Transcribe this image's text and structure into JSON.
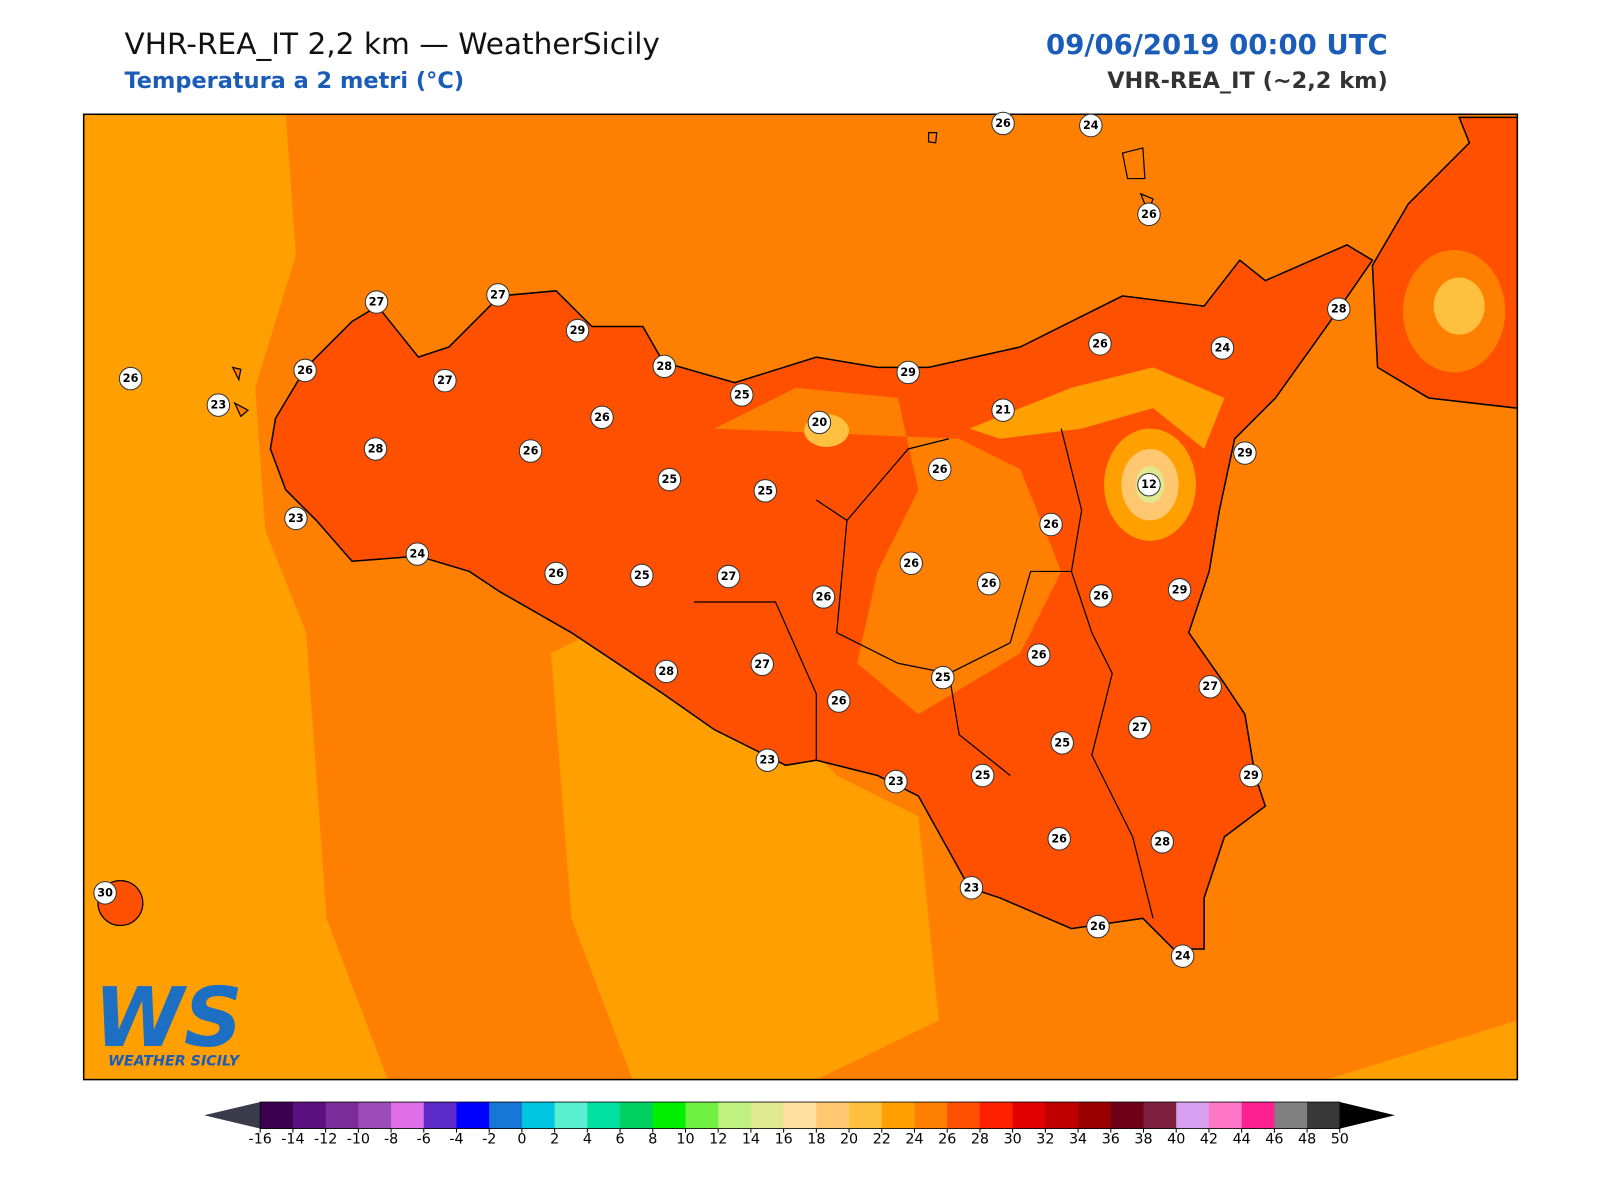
{
  "header": {
    "title": "VHR-REA_IT 2,2 km — WeatherSicily",
    "subtitle": "Temperatura a 2 metri (°C)",
    "datetime": "09/06/2019 00:00 UTC",
    "model": "VHR-REA_IT (~2,2 km)"
  },
  "map": {
    "stations": [
      26,
      24,
      26,
      27,
      27,
      29,
      26,
      23,
      26,
      27,
      28,
      25,
      29,
      26,
      24,
      28,
      26,
      20,
      21,
      28,
      26,
      25,
      25,
      26,
      29,
      12,
      23,
      24,
      26,
      26,
      25,
      27,
      26,
      26,
      26,
      26,
      29,
      26,
      28,
      27,
      25,
      27,
      26,
      27,
      25,
      23,
      25,
      23,
      29,
      26,
      28,
      23,
      26,
      24,
      30
    ]
  },
  "colorbar": {
    "ticks": [
      -16,
      -14,
      -12,
      -10,
      -8,
      -6,
      -4,
      -2,
      0,
      2,
      4,
      6,
      8,
      10,
      12,
      14,
      16,
      18,
      20,
      22,
      24,
      26,
      28,
      30,
      32,
      34,
      36,
      38,
      40,
      42,
      44,
      46,
      48,
      50
    ],
    "colors": [
      "#3b0050",
      "#5c0f80",
      "#7a2c9a",
      "#9c4cb8",
      "#dd6ee8",
      "#5b2ac8",
      "#0000ff",
      "#1677d6",
      "#00c6e0",
      "#58f0d0",
      "#00e0a0",
      "#00d060",
      "#00f000",
      "#70f040",
      "#c0f080",
      "#e0e890",
      "#ffe0a0",
      "#ffc870",
      "#ffc040",
      "#ffa000",
      "#ff8000",
      "#ff5000",
      "#ff2000",
      "#e00000",
      "#c00000",
      "#980000",
      "#700018",
      "#802040",
      "#d8a0f0",
      "#ff78c8",
      "#ff2090",
      "#808080",
      "#383838"
    ],
    "under_color": "#3a3a4a",
    "over_color": "#000000"
  },
  "logo": {
    "initials": "WS",
    "name": "WEATHER SICILY"
  }
}
